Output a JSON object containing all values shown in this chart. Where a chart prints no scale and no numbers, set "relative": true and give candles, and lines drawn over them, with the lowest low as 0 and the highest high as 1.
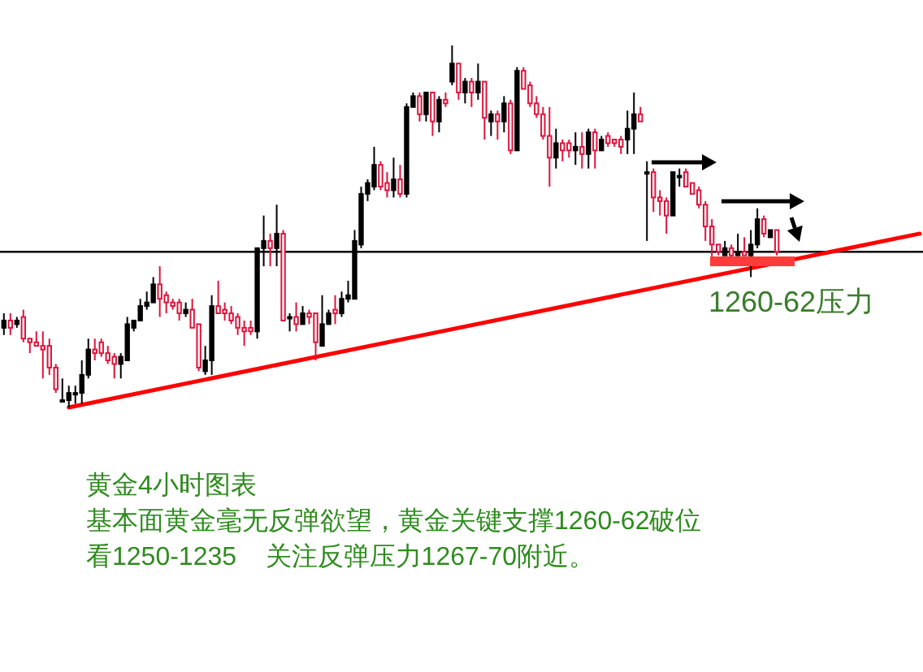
{
  "chart_data": {
    "type": "candlestick",
    "relative": true,
    "title": "黄金4小时图表",
    "annotations": [
      "1260-62压力",
      "基本面黄金毫无反弹欲望，黄金关键支撑1260-62破位",
      "看1250-1235    关注反弹压力1267-70附近。"
    ],
    "categories": [
      null,
      null,
      null,
      null,
      null,
      null,
      null,
      null,
      null,
      null,
      null,
      null,
      null,
      null,
      null,
      null,
      null,
      null,
      null,
      null,
      null,
      null,
      null,
      null,
      null,
      null,
      null,
      null,
      null,
      null,
      null,
      null,
      null,
      null,
      null,
      null,
      null,
      null,
      null,
      null,
      null,
      null,
      null,
      null,
      null,
      null,
      null,
      null,
      null,
      null,
      null,
      null,
      null,
      null,
      null,
      null,
      null,
      null,
      null,
      null,
      null,
      null,
      null,
      null,
      null,
      null,
      null,
      null,
      null,
      null,
      null,
      null,
      null,
      null,
      null,
      null,
      null,
      null,
      null,
      null,
      null,
      null,
      null,
      null,
      null,
      null,
      null,
      null,
      null,
      null,
      null,
      null,
      null,
      null,
      null,
      null,
      null,
      null,
      null,
      null,
      null,
      null,
      null,
      null,
      null,
      null,
      null,
      null,
      null,
      null,
      null,
      null,
      null,
      null,
      null,
      null,
      null,
      null,
      null,
      null,
      null,
      null,
      null,
      null,
      null,
      null,
      null,
      null,
      null,
      null,
      null,
      null,
      null,
      null,
      null,
      null,
      null,
      null,
      null,
      null,
      null,
      null
    ],
    "ohlc": [
      [
        0.22,
        0.26,
        0.2,
        0.24
      ],
      [
        0.24,
        0.26,
        0.2,
        0.22
      ],
      [
        0.23,
        0.25,
        0.22,
        0.24
      ],
      [
        0.25,
        0.27,
        0.18,
        0.19
      ],
      [
        0.19,
        0.19,
        0.15,
        0.18
      ],
      [
        0.18,
        0.21,
        0.17,
        0.17
      ],
      [
        0.17,
        0.21,
        0.08,
        0.16
      ],
      [
        0.17,
        0.19,
        0.09,
        0.11
      ],
      [
        0.11,
        0.12,
        0.04,
        0.05
      ],
      [
        0.02,
        0.08,
        0.02,
        0.02
      ],
      [
        0.02,
        0.06,
        0,
        0.04
      ],
      [
        0.04,
        0.06,
        0.01,
        0.04
      ],
      [
        0.04,
        0.13,
        0.01,
        0.09
      ],
      [
        0.09,
        0.19,
        0.08,
        0.16
      ],
      [
        0.16,
        0.19,
        0.13,
        0.15
      ],
      [
        0.18,
        0.19,
        0.14,
        0.15
      ],
      [
        0.15,
        0.17,
        0.12,
        0.13
      ],
      [
        0.14,
        0.15,
        0.08,
        0.12
      ],
      [
        0.12,
        0.15,
        0.08,
        0.14
      ],
      [
        0.13,
        0.25,
        0.13,
        0.23
      ],
      [
        0.22,
        0.24,
        0.21,
        0.24
      ],
      [
        0.24,
        0.3,
        0.24,
        0.28
      ],
      [
        0.28,
        0.32,
        0.27,
        0.29
      ],
      [
        0.29,
        0.36,
        0.29,
        0.34
      ],
      [
        0.34,
        0.39,
        0.25,
        0.3
      ],
      [
        0.31,
        0.32,
        0.26,
        0.29
      ],
      [
        0.29,
        0.3,
        0.27,
        0.28
      ],
      [
        0.29,
        0.3,
        0.24,
        0.26
      ],
      [
        0.26,
        0.29,
        0.25,
        0.27
      ],
      [
        0.27,
        0.3,
        0.22,
        0.22
      ],
      [
        0.23,
        0.23,
        0.1,
        0.11
      ],
      [
        0.1,
        0.17,
        0.09,
        0.13
      ],
      [
        0.13,
        0.31,
        0.09,
        0.28
      ],
      [
        0.28,
        0.35,
        0.26,
        0.26
      ],
      [
        0.27,
        0.29,
        0.24,
        0.26
      ],
      [
        0.26,
        0.28,
        0.23,
        0.24
      ],
      [
        0.25,
        0.26,
        0.2,
        0.22
      ],
      [
        0.22,
        0.24,
        0.17,
        0.21
      ],
      [
        0.22,
        0.24,
        0.2,
        0.21
      ],
      [
        0.21,
        0.44,
        0.19,
        0.44
      ],
      [
        0.44,
        0.53,
        0.39,
        0.46
      ],
      [
        0.46,
        0.48,
        0.39,
        0.44
      ],
      [
        0.44,
        0.56,
        0.39,
        0.48
      ],
      [
        0.48,
        0.49,
        0.24,
        0.24
      ],
      [
        0.25,
        0.26,
        0.21,
        0.25
      ],
      [
        0.25,
        0.29,
        0.21,
        0.23
      ],
      [
        0.23,
        0.28,
        0.23,
        0.26
      ],
      [
        0.26,
        0.27,
        0.23,
        0.25
      ],
      [
        0.26,
        0.26,
        0.13,
        0.18
      ],
      [
        0.17,
        0.31,
        0.17,
        0.23
      ],
      [
        0.23,
        0.27,
        0.23,
        0.26
      ],
      [
        0.27,
        0.31,
        0.23,
        0.26
      ],
      [
        0.26,
        0.32,
        0.25,
        0.3
      ],
      [
        0.3,
        0.35,
        0.29,
        0.31
      ],
      [
        0.3,
        0.49,
        0.3,
        0.46
      ],
      [
        0.45,
        0.61,
        0.44,
        0.59
      ],
      [
        0.59,
        0.63,
        0.57,
        0.62
      ],
      [
        0.61,
        0.72,
        0.6,
        0.67
      ],
      [
        0.67,
        0.68,
        0.6,
        0.61
      ],
      [
        0.62,
        0.65,
        0.58,
        0.6
      ],
      [
        0.6,
        0.69,
        0.58,
        0.63
      ],
      [
        0.63,
        0.67,
        0.58,
        0.59
      ],
      [
        0.59,
        0.84,
        0.58,
        0.83
      ],
      [
        0.83,
        0.87,
        0.83,
        0.86
      ],
      [
        0.86,
        0.87,
        0.79,
        0.81
      ],
      [
        0.81,
        0.87,
        0.79,
        0.87
      ],
      [
        0.87,
        0.87,
        0.75,
        0.79
      ],
      [
        0.79,
        0.86,
        0.76,
        0.85
      ],
      [
        0.85,
        0.87,
        0.83,
        0.84
      ],
      [
        0.9,
        1,
        0.89,
        0.95
      ],
      [
        0.95,
        0.95,
        0.85,
        0.87
      ],
      [
        0.87,
        0.91,
        0.84,
        0.9
      ],
      [
        0.9,
        0.91,
        0.83,
        0.87
      ],
      [
        0.87,
        0.95,
        0.85,
        0.9
      ],
      [
        0.9,
        0.9,
        0.74,
        0.8
      ],
      [
        0.79,
        0.82,
        0.75,
        0.81
      ],
      [
        0.81,
        0.82,
        0.74,
        0.79
      ],
      [
        0.79,
        0.86,
        0.76,
        0.84
      ],
      [
        0.84,
        0.85,
        0.7,
        0.71
      ],
      [
        0.71,
        0.94,
        0.71,
        0.93
      ],
      [
        0.93,
        0.94,
        0.88,
        0.88
      ],
      [
        0.89,
        0.9,
        0.83,
        0.84
      ],
      [
        0.84,
        0.86,
        0.8,
        0.81
      ],
      [
        0.81,
        0.83,
        0.74,
        0.75
      ],
      [
        0.75,
        0.83,
        0.61,
        0.69
      ],
      [
        0.69,
        0.77,
        0.66,
        0.73
      ],
      [
        0.73,
        0.74,
        0.68,
        0.71
      ],
      [
        0.73,
        0.74,
        0.69,
        0.71
      ],
      [
        0.71,
        0.76,
        0.67,
        0.72
      ],
      [
        0.72,
        0.76,
        0.66,
        0.7
      ],
      [
        0.7,
        0.77,
        0.66,
        0.76
      ],
      [
        0.76,
        0.77,
        0.66,
        0.71
      ],
      [
        0.71,
        0.75,
        0.71,
        0.74
      ],
      [
        0.75,
        0.76,
        0.72,
        0.73
      ],
      [
        0.74,
        0.74,
        0.72,
        0.73
      ],
      [
        0.74,
        0.75,
        0.7,
        0.72
      ],
      [
        0.74,
        0.82,
        0.7,
        0.77
      ],
      [
        0.77,
        0.87,
        0.7,
        0.81
      ],
      [
        0.81,
        0.83,
        0.79,
        0.79
      ],
      [
        0.65,
        0.68,
        0.46,
        0.65
      ],
      [
        0.65,
        0.66,
        0.54,
        0.58
      ],
      [
        0.58,
        0.6,
        0.53,
        0.57
      ],
      [
        0.57,
        0.58,
        0.48,
        0.53
      ],
      [
        0.53,
        0.65,
        0.53,
        0.65
      ],
      [
        0.64,
        0.66,
        0.61,
        0.64
      ],
      [
        0.65,
        0.66,
        0.61,
        0.61
      ],
      [
        0.62,
        0.62,
        0.59,
        0.59
      ],
      [
        0.6,
        0.61,
        0.55,
        0.56
      ],
      [
        0.56,
        0.57,
        0.46,
        0.5
      ],
      [
        0.5,
        0.52,
        0.41,
        0.45
      ],
      [
        0.45,
        0.45,
        0.42,
        0.43
      ],
      [
        0.42,
        0.46,
        0.42,
        0.44
      ],
      [
        0.44,
        0.45,
        0.41,
        0.42
      ],
      [
        0.42,
        0.48,
        0.42,
        0.43
      ],
      [
        0.43,
        0.47,
        0.42,
        0.42
      ],
      [
        0.42,
        0.49,
        0.36,
        0.45
      ],
      [
        0.45,
        0.55,
        0.44,
        0.52
      ],
      [
        0.52,
        0.53,
        0.47,
        0.48
      ],
      [
        0.47,
        0.49,
        0.47,
        0.49
      ],
      [
        0.49,
        0.49,
        0.42,
        0.43
      ],
      null,
      null,
      null,
      null,
      null,
      null,
      null,
      null,
      null,
      null,
      null,
      null,
      null,
      null,
      null,
      null,
      null,
      null,
      null,
      null,
      null,
      null
    ],
    "series": [
      {
        "type": "line",
        "color": "#ff0000",
        "values": [
          null,
          null,
          null,
          null,
          null,
          null,
          null,
          null,
          null,
          null,
          0,
          null,
          null,
          null,
          null,
          null,
          null,
          null,
          null,
          null,
          null,
          null,
          null,
          null,
          null,
          null,
          null,
          null,
          null,
          null,
          null,
          null,
          null,
          null,
          null,
          null,
          null,
          null,
          null,
          null,
          null,
          null,
          null,
          null,
          null,
          null,
          null,
          null,
          null,
          null,
          null,
          null,
          null,
          null,
          null,
          null,
          null,
          null,
          null,
          null,
          null,
          null,
          null,
          null,
          null,
          null,
          null,
          null,
          null,
          null,
          null,
          null,
          null,
          null,
          null,
          null,
          null,
          null,
          null,
          null,
          null,
          null,
          null,
          null,
          null,
          null,
          null,
          null,
          null,
          null,
          null,
          null,
          null,
          null,
          null,
          null,
          null,
          null,
          null,
          null,
          null,
          null,
          null,
          null,
          null,
          null,
          null,
          null,
          null,
          null,
          null,
          null,
          null,
          null,
          null,
          null,
          null,
          null,
          null,
          null,
          null,
          null,
          null,
          null,
          null,
          null,
          null,
          null,
          null,
          null,
          null,
          null,
          null,
          null,
          null,
          null,
          null,
          null,
          null,
          null,
          null,
          0.48
        ]
      }
    ],
    "ref_lines": [
      {
        "axis": "y",
        "value": 0.43,
        "color": "#000000"
      }
    ]
  }
}
